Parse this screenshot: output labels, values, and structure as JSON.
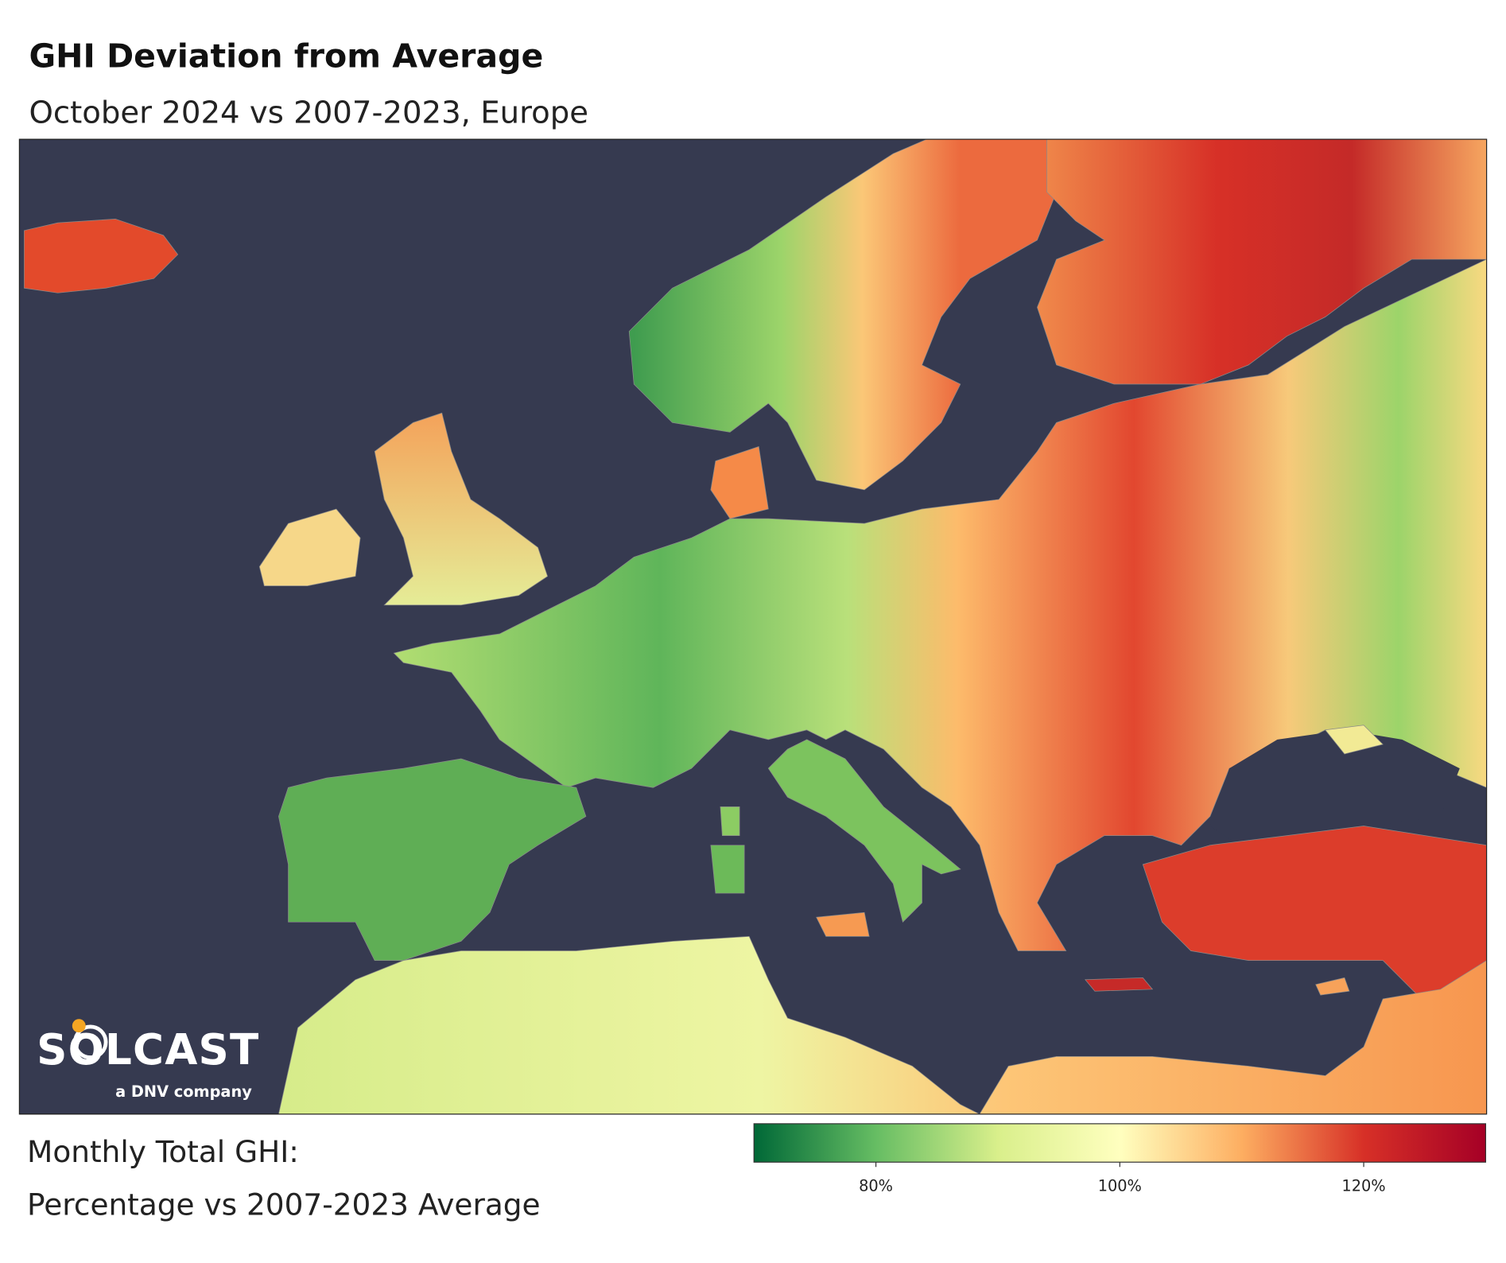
{
  "header": {
    "title": "GHI Deviation from Average",
    "subtitle": "October 2024 vs 2007-2023, Europe"
  },
  "colorbar": {
    "label_lines": [
      "Monthly Total GHI:",
      "Percentage vs 2007-2023 Average"
    ],
    "lim": [
      70,
      130
    ],
    "ticks": [
      {
        "value": 80,
        "label": "80%"
      },
      {
        "value": 100,
        "label": "100%"
      },
      {
        "value": 120,
        "label": "120%"
      }
    ],
    "colors": [
      "#006837",
      "#66bd63",
      "#d9ef8b",
      "#ffffbf",
      "#fdae61",
      "#d73027",
      "#a50026"
    ]
  },
  "logo": {
    "name": "SOLCAST",
    "tagline": "a DNV company"
  }
}
